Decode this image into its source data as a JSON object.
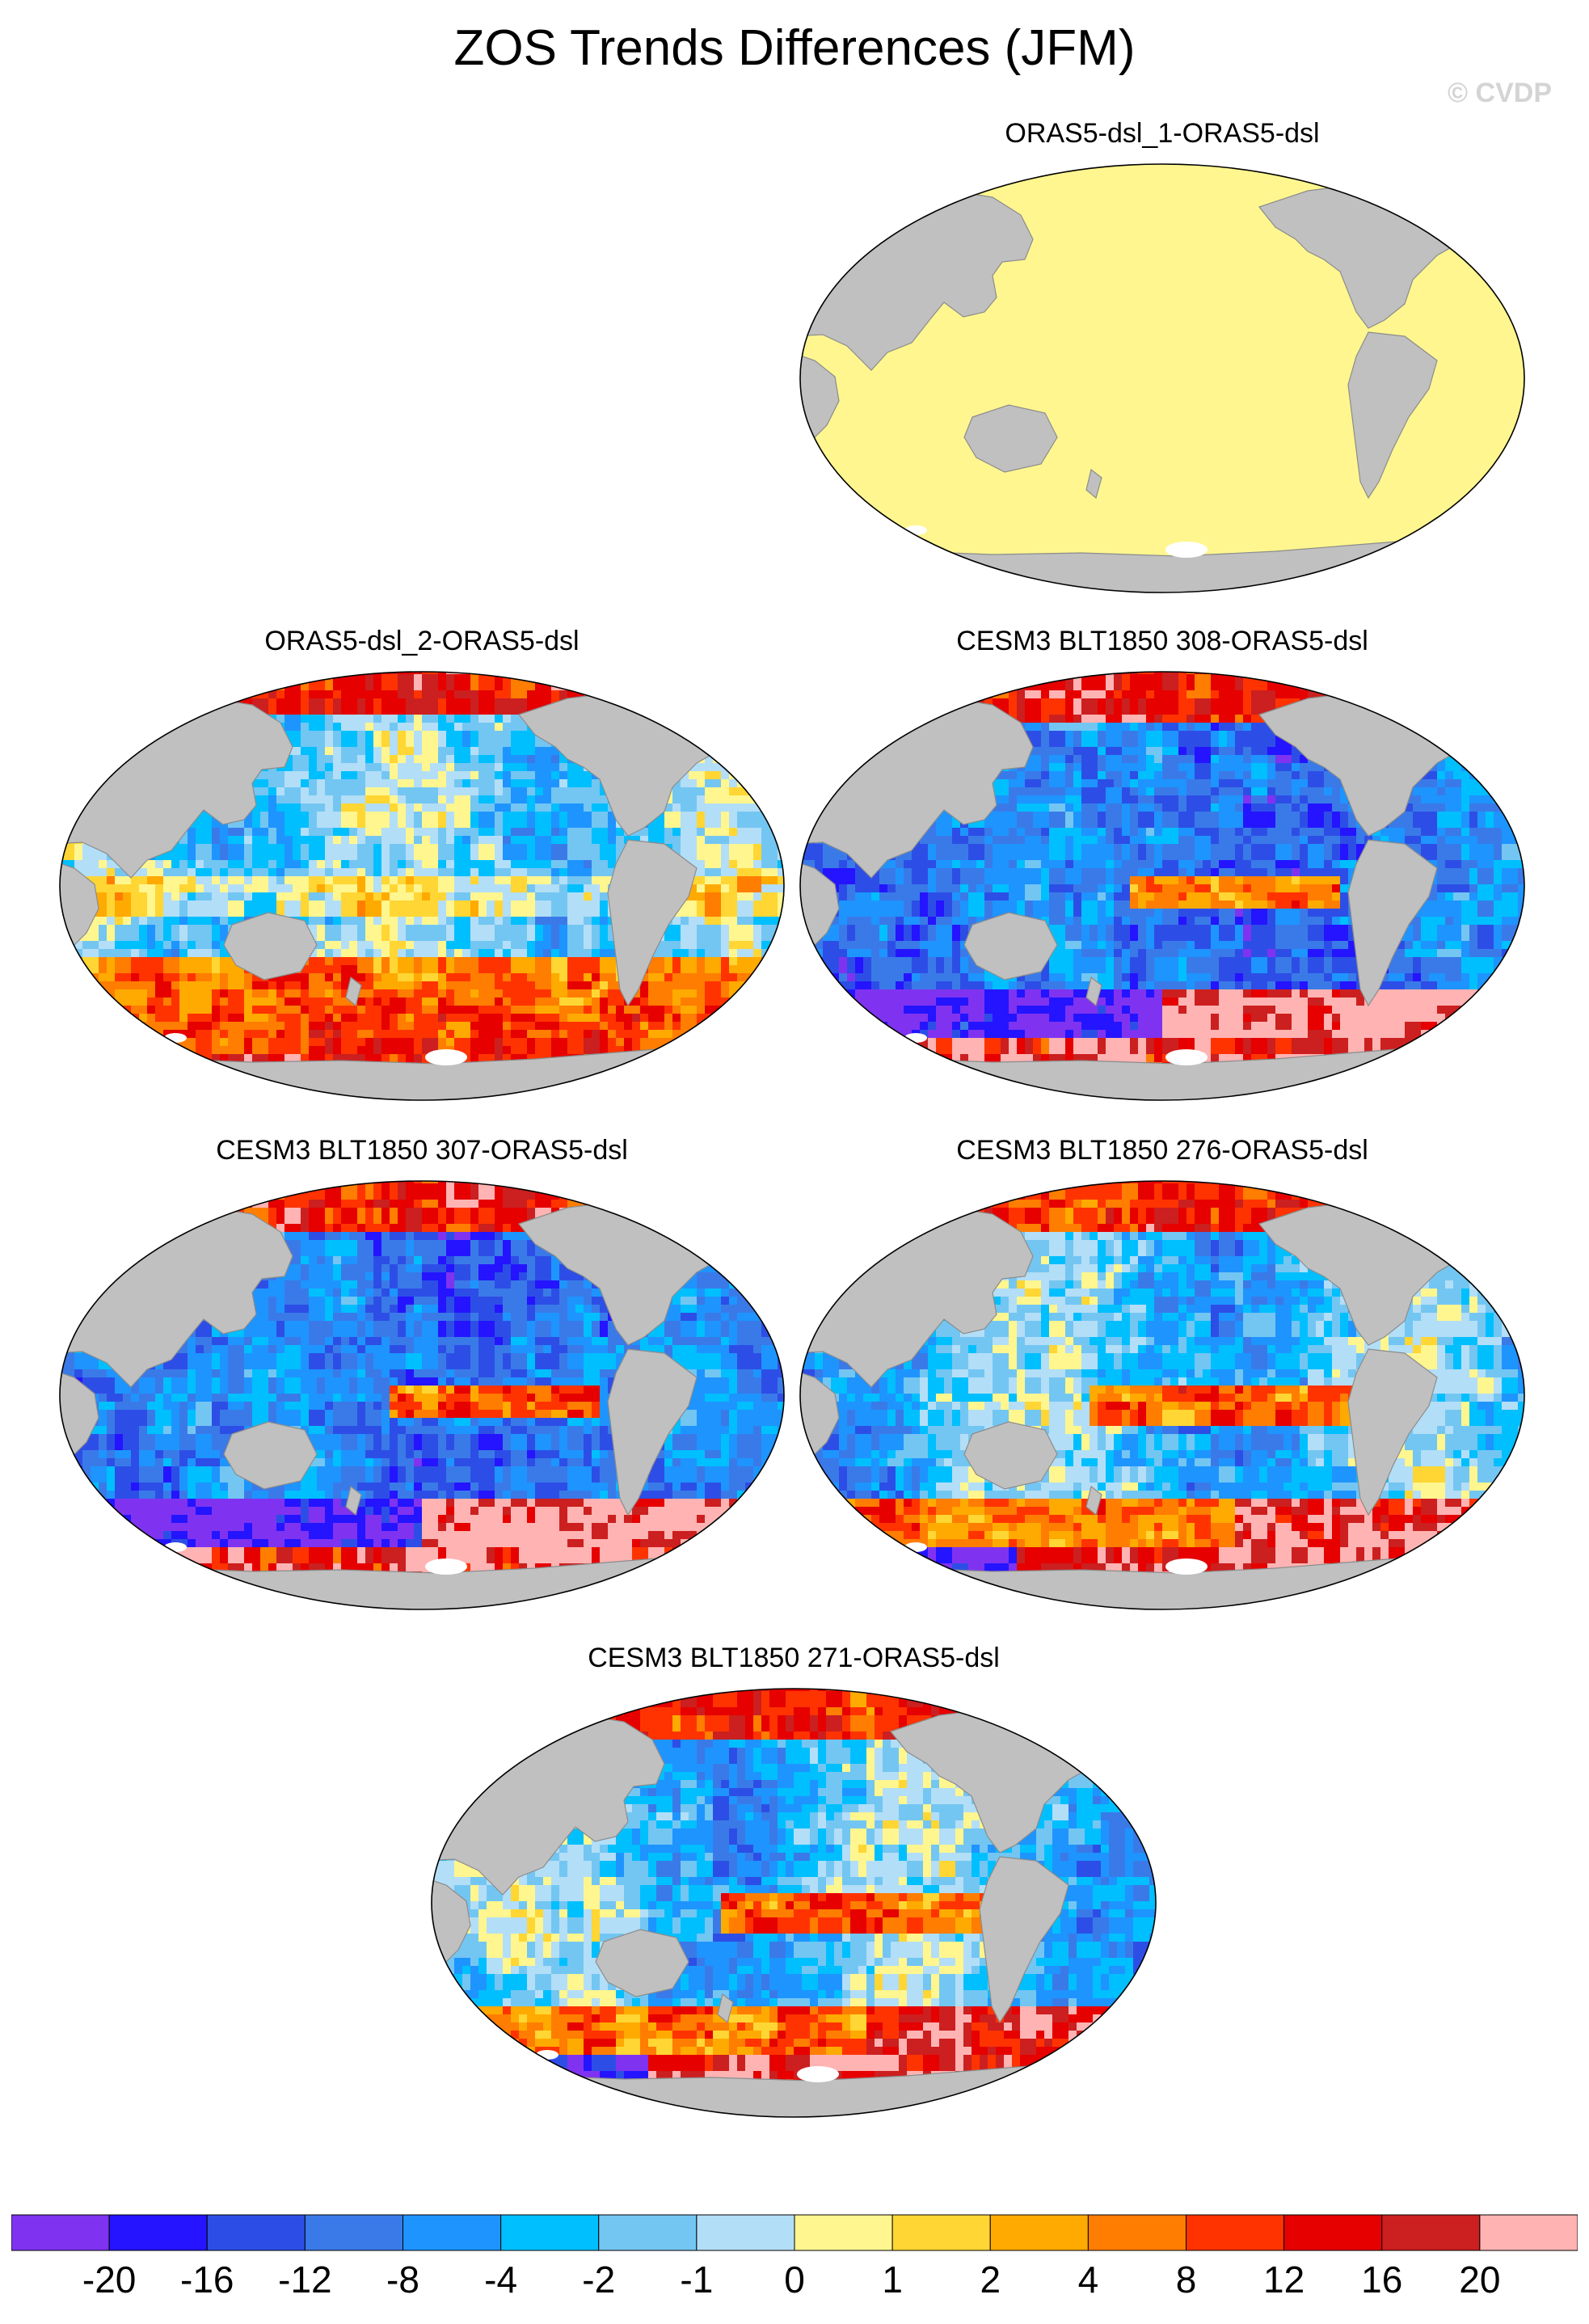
{
  "header": {
    "title": "ZOS Trends Differences (JFM)",
    "copyright": "© CVDP"
  },
  "colors": {
    "land": "#c0c0c0",
    "coastline": "#8c8c8c",
    "ice": "#ffffff",
    "uniform_ocean": "#fff68f"
  },
  "panels": [
    {
      "title": "ORAS5-dsl_1-ORAS5-dsl",
      "pattern": "uniform",
      "value": 0.5
    },
    {
      "title": "ORAS5-dsl_2-ORAS5-dsl",
      "pattern": "mixed_cold_warm_south"
    },
    {
      "title": "CESM3 BLT1850 308-ORAS5-dsl",
      "pattern": "cold_with_warm_equatorial_band"
    },
    {
      "title": "CESM3 BLT1850 307-ORAS5-dsl",
      "pattern": "cold_with_warm_equatorial_band"
    },
    {
      "title": "CESM3 BLT1850 276-ORAS5-dsl",
      "pattern": "mixed_warm_equatorial_band"
    },
    {
      "title": "CESM3 BLT1850 271-ORAS5-dsl",
      "pattern": "mixed_warm_equatorial_band"
    }
  ],
  "colorbar": {
    "colors": [
      "#7f33f0",
      "#2414ff",
      "#2d4ee6",
      "#3a7ae8",
      "#1e94ff",
      "#00bfff",
      "#73c6f2",
      "#b3def7",
      "#fff68f",
      "#ffd633",
      "#ffaa00",
      "#ff7d00",
      "#ff3300",
      "#e60000",
      "#cc1f1f",
      "#ffb3b3"
    ],
    "labels": [
      "-20",
      "-16",
      "-12",
      "-8",
      "-4",
      "-2",
      "-1",
      "0",
      "1",
      "2",
      "4",
      "8",
      "12",
      "16",
      "20"
    ]
  }
}
